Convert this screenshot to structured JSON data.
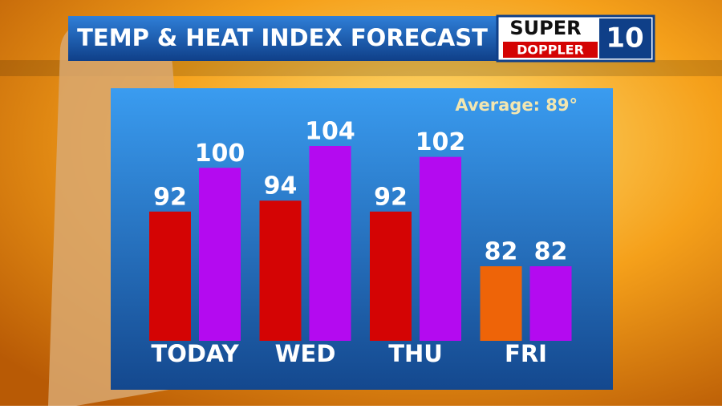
{
  "chart_data": {
    "type": "bar",
    "title": "TEMP & HEAT INDEX FORECAST",
    "annotation": "Average: 89°",
    "logo": [
      "SUPER",
      "DOPPLER",
      "10"
    ],
    "categories": [
      "TODAY",
      "WED",
      "THU",
      "FRI"
    ],
    "series": [
      {
        "colors": [
          "#d40404",
          "#d40404",
          "#d40404",
          "#ee6408"
        ],
        "values": [
          92,
          94,
          92,
          82
        ]
      },
      {
        "color": "#b40af0",
        "values": [
          100,
          104,
          102,
          82
        ]
      }
    ]
  }
}
